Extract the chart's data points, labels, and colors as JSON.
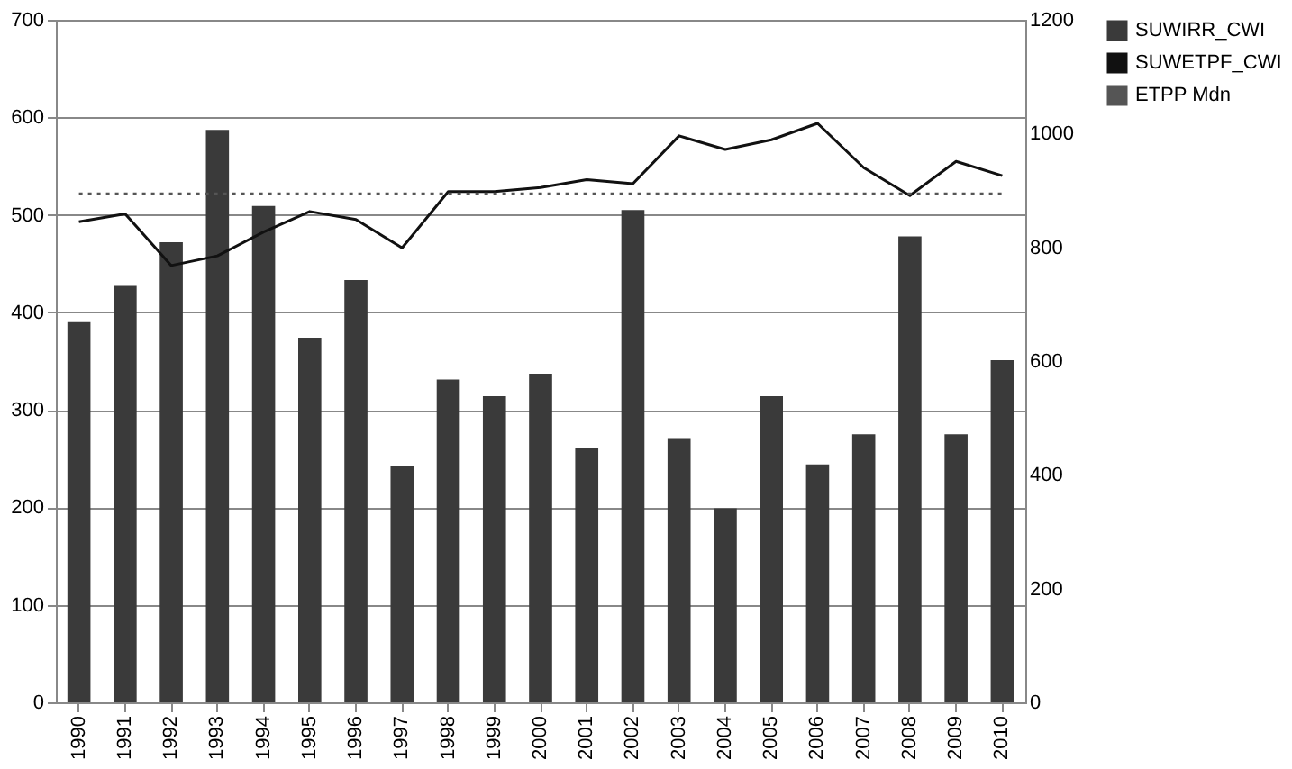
{
  "chart_data": {
    "type": "bar",
    "categories": [
      "1990",
      "1991",
      "1992",
      "1993",
      "1994",
      "1995",
      "1996",
      "1997",
      "1998",
      "1999",
      "2000",
      "2001",
      "2002",
      "2003",
      "2004",
      "2005",
      "2006",
      "2007",
      "2008",
      "2009",
      "2010"
    ],
    "series": [
      {
        "name": "SUWIRR_CWI",
        "color": "#3a3a3a",
        "values": [
          390,
          427,
          472,
          587,
          509,
          374,
          433,
          242,
          331,
          314,
          337,
          261,
          505,
          271,
          199,
          314,
          244,
          275,
          478,
          275,
          351
        ]
      },
      {
        "name": "SUWETPF_CWI",
        "type": "line",
        "axis": "y2",
        "color": "#111111",
        "line_style": "solid",
        "values": [
          845,
          859,
          768,
          785,
          827,
          863,
          849,
          799,
          898,
          898,
          905,
          919,
          912,
          996,
          972,
          989,
          1018,
          940,
          891,
          951,
          926
        ]
      },
      {
        "name": "ETPP Mdn",
        "type": "line",
        "axis": "y2",
        "color": "#555555",
        "line_style": "dotted",
        "values": [
          894,
          894,
          894,
          894,
          894,
          894,
          894,
          894,
          894,
          894,
          894,
          894,
          894,
          894,
          894,
          894,
          894,
          894,
          894,
          894,
          894
        ]
      }
    ],
    "ylim": [
      0,
      700
    ],
    "yticks": [
      0,
      100,
      200,
      300,
      400,
      500,
      600,
      700
    ],
    "y2lim": [
      0,
      1200
    ],
    "y2ticks": [
      0,
      200,
      400,
      600,
      800,
      1000,
      1200
    ],
    "grid": "y",
    "legend": "right"
  }
}
